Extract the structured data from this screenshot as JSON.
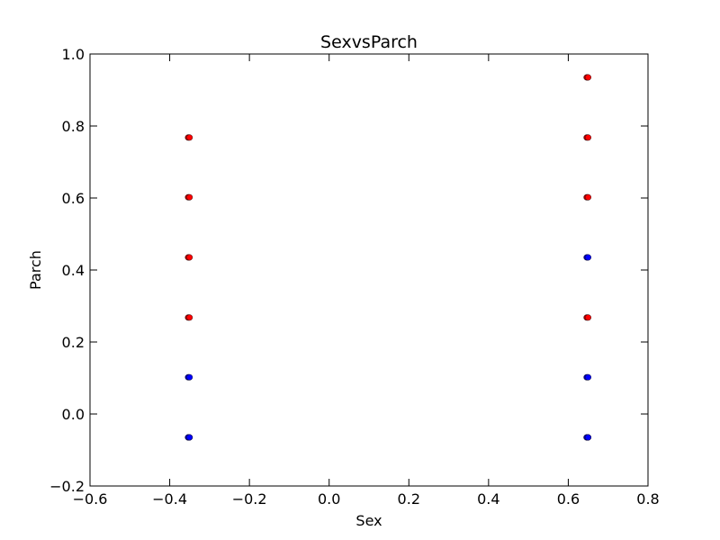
{
  "chart_data": {
    "type": "scatter",
    "title": "SexvsParch",
    "xlabel": "Sex",
    "ylabel": "Parch",
    "xlim": [
      -0.6,
      0.8
    ],
    "ylim": [
      -0.2,
      1.0
    ],
    "x_ticks": [
      -0.6,
      -0.4,
      -0.2,
      0.0,
      0.2,
      0.4,
      0.6,
      0.8
    ],
    "y_ticks": [
      -0.2,
      0.0,
      0.2,
      0.4,
      0.6,
      0.8,
      1.0
    ],
    "x_tick_labels": [
      "−0.6",
      "−0.4",
      "−0.2",
      "0.0",
      "0.2",
      "0.4",
      "0.6",
      "0.8"
    ],
    "y_tick_labels": [
      "−0.2",
      "0.0",
      "0.2",
      "0.4",
      "0.6",
      "0.8",
      "1.0"
    ],
    "grid": false,
    "series": [
      {
        "color": "#ff0000",
        "points": [
          {
            "x": -0.352,
            "y": -0.065
          },
          {
            "x": -0.352,
            "y": 0.268
          },
          {
            "x": -0.352,
            "y": 0.435
          },
          {
            "x": -0.352,
            "y": 0.602
          },
          {
            "x": -0.352,
            "y": 0.768
          },
          {
            "x": 0.648,
            "y": -0.065
          },
          {
            "x": 0.648,
            "y": 0.268
          },
          {
            "x": 0.648,
            "y": 0.602
          },
          {
            "x": 0.648,
            "y": 0.768
          },
          {
            "x": 0.648,
            "y": 0.935
          }
        ]
      },
      {
        "color": "#0000ff",
        "points": [
          {
            "x": -0.352,
            "y": -0.065
          },
          {
            "x": -0.352,
            "y": 0.102
          },
          {
            "x": 0.648,
            "y": -0.065
          },
          {
            "x": 0.648,
            "y": 0.102
          },
          {
            "x": 0.648,
            "y": 0.435
          }
        ]
      }
    ]
  }
}
